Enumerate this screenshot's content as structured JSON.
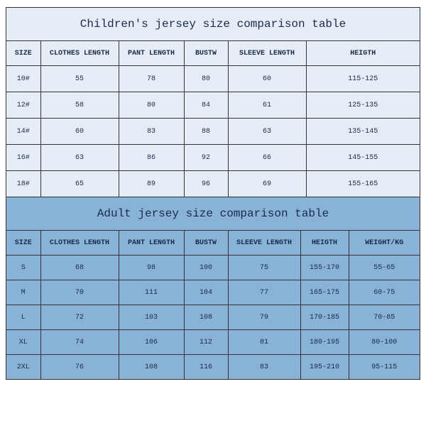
{
  "children": {
    "title": "Children's jersey size comparison table",
    "columns": [
      "SIZE",
      "CLOTHES LENGTH",
      "PANT LENGTH",
      "BUSTW",
      "SLEEVE LENGTH",
      "HEIGTH"
    ],
    "rows": [
      [
        "10#",
        "55",
        "78",
        "80",
        "60",
        "115-125"
      ],
      [
        "12#",
        "58",
        "80",
        "84",
        "61",
        "125-135"
      ],
      [
        "14#",
        "60",
        "83",
        "88",
        "63",
        "135-145"
      ],
      [
        "16#",
        "63",
        "86",
        "92",
        "66",
        "145-155"
      ],
      [
        "18#",
        "65",
        "89",
        "96",
        "69",
        "155-165"
      ]
    ],
    "col_widths": [
      "48px",
      "110px",
      "92px",
      "62px",
      "110px",
      "auto"
    ]
  },
  "adult": {
    "title": "Adult jersey size comparison table",
    "columns": [
      "SIZE",
      "CLOTHES LENGTH",
      "PANT LENGTH",
      "BUSTW",
      "SLEEVE LENGTH",
      "HEIGTH",
      "WEIGHT/KG"
    ],
    "rows": [
      [
        "S",
        "68",
        "98",
        "100",
        "75",
        "155-170",
        "55-65"
      ],
      [
        "M",
        "70",
        "111",
        "104",
        "77",
        "165-175",
        "60-75"
      ],
      [
        "L",
        "72",
        "103",
        "108",
        "79",
        "170-185",
        "70-85"
      ],
      [
        "XL",
        "74",
        "106",
        "112",
        "81",
        "180-195",
        "80-100"
      ],
      [
        "2XL",
        "76",
        "108",
        "116",
        "83",
        "195-210",
        "95-115"
      ]
    ],
    "col_widths": [
      "48px",
      "110px",
      "92px",
      "62px",
      "102px",
      "68px",
      "auto"
    ]
  }
}
